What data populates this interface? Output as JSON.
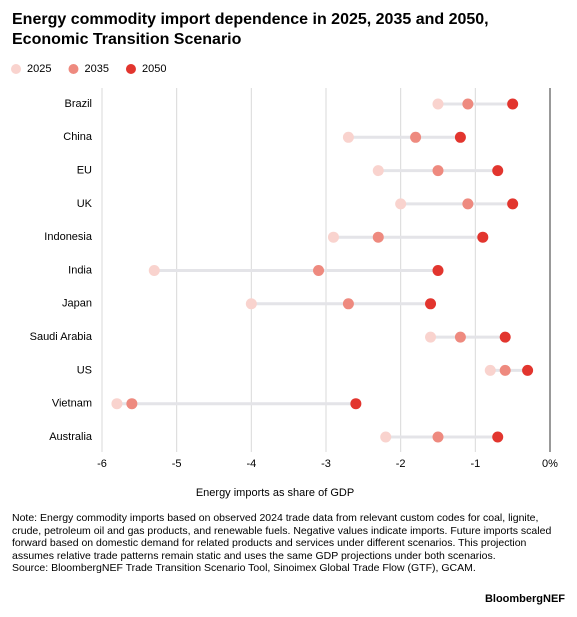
{
  "chart_data": {
    "type": "dot",
    "title": "Energy commodity import dependence in 2025, 2035 and 2050, Economic Transition Scenario",
    "categories": [
      "Brazil",
      "China",
      "EU",
      "UK",
      "Indonesia",
      "India",
      "Japan",
      "Saudi Arabia",
      "US",
      "Vietnam",
      "Australia"
    ],
    "series": [
      {
        "name": "2025",
        "color": "#f9d3ce",
        "values": [
          -1.5,
          -2.7,
          -2.3,
          -2.0,
          -2.9,
          -5.3,
          -4.0,
          -1.6,
          -0.8,
          -5.8,
          -2.2
        ]
      },
      {
        "name": "2035",
        "color": "#ee8a7f",
        "values": [
          -1.1,
          -1.8,
          -1.5,
          -1.1,
          -2.3,
          -3.1,
          -2.7,
          -1.2,
          -0.6,
          -5.6,
          -1.5
        ]
      },
      {
        "name": "2050",
        "color": "#e2352e",
        "values": [
          -0.5,
          -1.2,
          -0.7,
          -0.5,
          -0.9,
          -1.5,
          -1.6,
          -0.6,
          -0.3,
          -2.6,
          -0.7
        ]
      }
    ],
    "xlabel": "Energy imports as share of GDP",
    "xlim": [
      -6,
      0
    ],
    "xticks": [
      -6,
      -5,
      -4,
      -3,
      -2,
      -1,
      {
        "value": 0,
        "label": "0%"
      }
    ],
    "grid": true,
    "legend": "top-left",
    "note": "Note: Energy commodity imports based on observed 2024 trade data from relevant custom codes for coal, lignite, crude, petroleum oil and gas products, and renewable fuels. Negative values indicate imports. Future imports scaled forward based on domestic demand for related products and services under different scenarios. This projection assumes relative trade patterns remain static and uses the same GDP projections under both scenarios.",
    "source": "Source: BloombergNEF Trade Transition Scenario Tool, Sinoimex Global Trade Flow (GTF), GCAM.",
    "brand": "BloombergNEF"
  }
}
